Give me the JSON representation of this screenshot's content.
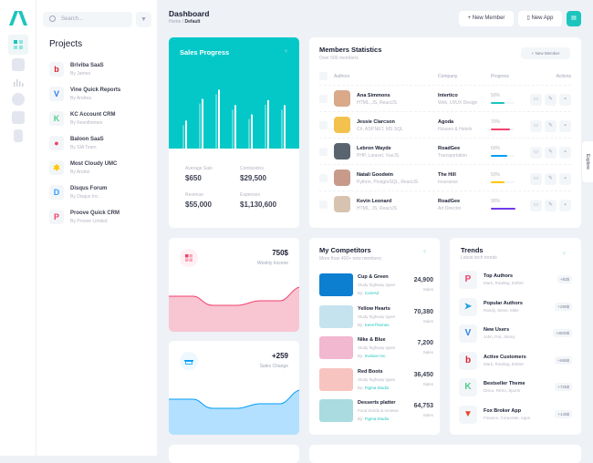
{
  "sidebar": {
    "icons": [
      "dashboard-icon",
      "briefcase-icon",
      "chart-icon",
      "shield-icon",
      "layers-icon",
      "document-icon"
    ]
  },
  "projects": {
    "search_placeholder": "Search...",
    "title": "Projects",
    "items": [
      {
        "name": "Briviba SaaS",
        "by": "By James",
        "logo": "b",
        "color": "#e11d2d"
      },
      {
        "name": "Vine Quick Reports",
        "by": "By Andrea",
        "logo": "V",
        "color": "#2f80ed"
      },
      {
        "name": "KC Account CRM",
        "by": "By Keenthemes",
        "logo": "K",
        "color": "#50cd89"
      },
      {
        "name": "Baloon SaaS",
        "by": "By SIA Team",
        "logo": "●",
        "color": "#f1416c"
      },
      {
        "name": "Most Cloudy UMC",
        "by": "By Andrei",
        "logo": "✱",
        "color": "#ffc700"
      },
      {
        "name": "Disqus Forum",
        "by": "By Disqus Inc.",
        "logo": "D",
        "color": "#2e9fff"
      },
      {
        "name": "Proove Quick CRM",
        "by": "By Proove Limited",
        "logo": "P",
        "color": "#f1416c"
      }
    ]
  },
  "header": {
    "title": "Dashboard",
    "breadcrumb": [
      "Home",
      "Default"
    ],
    "new_member": "New Member",
    "new_app": "New App"
  },
  "sales_progress": {
    "title": "Sales Progress",
    "bars": [
      0.45,
      0.8,
      0.95,
      0.7,
      0.55,
      0.78,
      0.7
    ],
    "stats": [
      {
        "label": "Average Sale",
        "value": "$650"
      },
      {
        "label": "Comissions",
        "value": "$29,500"
      },
      {
        "label": "Revenue",
        "value": "$55,000"
      },
      {
        "label": "Expenses",
        "value": "$1,130,600"
      }
    ]
  },
  "members": {
    "title": "Members Statistics",
    "subtitle": "Over 500 members",
    "button": "New Member",
    "columns": [
      "Authors",
      "Company",
      "Progress",
      "Actions"
    ],
    "rows": [
      {
        "name": "Ana Simmons",
        "skills": "HTML, JS, ReactJS",
        "company": "Intertico",
        "desc": "Web, UI/UX Design",
        "progress": "50%",
        "pct": 50,
        "color": "#1bc5bd",
        "avatar": "#d9a98a"
      },
      {
        "name": "Jessie Clarcson",
        "skills": "C#, ASP.NET, MS SQL",
        "company": "Agoda",
        "desc": "Houses & Hotels",
        "progress": "70%",
        "pct": 70,
        "color": "#f1416c",
        "avatar": "#f2c14e"
      },
      {
        "name": "Lebron Wayde",
        "skills": "PHP, Laravel, VueJS",
        "company": "RoadGee",
        "desc": "Transportation",
        "progress": "60%",
        "pct": 60,
        "color": "#009ef7",
        "avatar": "#5a6470"
      },
      {
        "name": "Natali Goodwin",
        "skills": "Python, PostgreSQL, ReactJS",
        "company": "The Hill",
        "desc": "Insurance",
        "progress": "50%",
        "pct": 50,
        "color": "#ffc700",
        "avatar": "#c79a8a"
      },
      {
        "name": "Kevin Leonard",
        "skills": "HTML, JS, ReactJS",
        "company": "RoadGee",
        "desc": "Art Director",
        "progress": "90%",
        "pct": 90,
        "color": "#7239ea",
        "avatar": "#d8c3b0"
      }
    ]
  },
  "weekly": {
    "value": "750$",
    "label": "Weekly Income"
  },
  "sales_change": {
    "value": "+259",
    "label": "Sales Change"
  },
  "competitors": {
    "title": "My Competitors",
    "subtitle": "More than 400+ new members",
    "by_label": "By:",
    "sales_label": "Sales",
    "items": [
      {
        "name": "Cup & Green",
        "desc": "Study highway types",
        "by": "CoreAd",
        "value": "24,900",
        "img": "#0c7fd1"
      },
      {
        "name": "Yellow Hearts",
        "desc": "Study highway types",
        "by": "KeenThemes",
        "value": "70,380",
        "img": "#c5e3ef"
      },
      {
        "name": "Nike & Blue",
        "desc": "Study highway types",
        "by": "Invision Inc.",
        "value": "7,200",
        "img": "#f2b8cf"
      },
      {
        "name": "Red Boots",
        "desc": "Study highway types",
        "by": "Figma Studio",
        "value": "36,450",
        "img": "#f8c4c0"
      },
      {
        "name": "Desserts platter",
        "desc": "Food trends & reviews",
        "by": "Figma Studio",
        "value": "64,753",
        "img": "#a9dbe0"
      }
    ]
  },
  "trends": {
    "title": "Trends",
    "subtitle": "Latest tech trends",
    "items": [
      {
        "name": "Top Authors",
        "desc": "Mark, Rowling, Esther",
        "badge": "+82$",
        "logo": "P",
        "color": "#f1416c"
      },
      {
        "name": "Popular Authors",
        "desc": "Randy, Steve, Mike",
        "badge": "+280$",
        "logo": "➤",
        "color": "#2aa3e0"
      },
      {
        "name": "New Users",
        "desc": "John, Pat, Jimmy",
        "badge": "+4500$",
        "logo": "V",
        "color": "#2f80ed"
      },
      {
        "name": "Active Customers",
        "desc": "Mark, Rowling, Esther",
        "badge": "+686$",
        "logo": "b",
        "color": "#e11d2d"
      },
      {
        "name": "Bestseller Theme",
        "desc": "Disco, Retro, Sports",
        "badge": "+726$",
        "logo": "K",
        "color": "#50cd89"
      },
      {
        "name": "Fox Broker App",
        "desc": "Finance, Corporate, Apps",
        "badge": "+145$",
        "logo": "▼",
        "color": "#e8452c"
      }
    ]
  },
  "explore": "Explore",
  "colors": {
    "accent": "#04c8c8",
    "pink": "#f1416c",
    "blue": "#009ef7"
  }
}
